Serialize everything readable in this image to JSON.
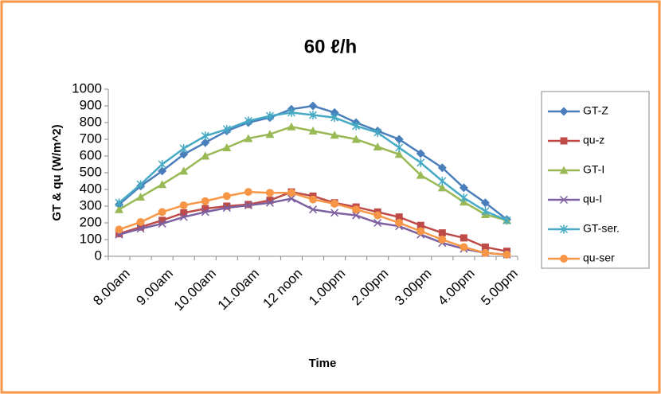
{
  "chart_data": {
    "type": "line",
    "title": "60 ℓ/h",
    "x_label": "Time",
    "y_label": "GT & qu (W/m^2)",
    "categories": [
      "8.00am",
      null,
      "9.00am",
      null,
      "10.00am",
      null,
      "11.00am",
      null,
      "12 noon",
      null,
      "1.00pm",
      null,
      "2.00pm",
      null,
      "3.00pm",
      null,
      "4.00pm",
      null,
      "5.00pm"
    ],
    "series": [
      {
        "name": "GT-Z",
        "color": "#4a7ebb",
        "marker": "diamond",
        "values": [
          310,
          420,
          510,
          610,
          680,
          750,
          800,
          830,
          880,
          900,
          860,
          800,
          750,
          700,
          615,
          530,
          410,
          320,
          220
        ]
      },
      {
        "name": "qu-z",
        "color": "#be4b48",
        "marker": "square",
        "values": [
          135,
          175,
          215,
          260,
          285,
          300,
          310,
          335,
          385,
          360,
          320,
          295,
          265,
          235,
          185,
          140,
          110,
          55,
          30
        ]
      },
      {
        "name": "GT-I",
        "color": "#98b954",
        "marker": "triangle",
        "values": [
          280,
          355,
          430,
          510,
          600,
          650,
          705,
          730,
          775,
          750,
          725,
          700,
          655,
          610,
          485,
          410,
          325,
          250,
          215
        ]
      },
      {
        "name": "qu-I",
        "color": "#7d60a0",
        "marker": "x",
        "values": [
          130,
          165,
          195,
          235,
          265,
          290,
          305,
          320,
          345,
          280,
          260,
          245,
          200,
          180,
          130,
          80,
          45,
          20,
          10
        ]
      },
      {
        "name": "GT-ser.",
        "color": "#46aac5",
        "marker": "star",
        "values": [
          320,
          430,
          550,
          645,
          720,
          760,
          810,
          840,
          860,
          845,
          830,
          780,
          740,
          650,
          560,
          450,
          350,
          270,
          215
        ]
      },
      {
        "name": "qu-ser",
        "color": "#f79646",
        "marker": "circle",
        "values": [
          160,
          205,
          265,
          305,
          330,
          360,
          385,
          380,
          380,
          340,
          315,
          280,
          245,
          200,
          150,
          100,
          55,
          20,
          10
        ]
      }
    ],
    "ylim": [
      0,
      1000
    ],
    "yticks": [
      0,
      100,
      200,
      300,
      400,
      500,
      600,
      700,
      800,
      900,
      1000
    ],
    "grid": false
  }
}
